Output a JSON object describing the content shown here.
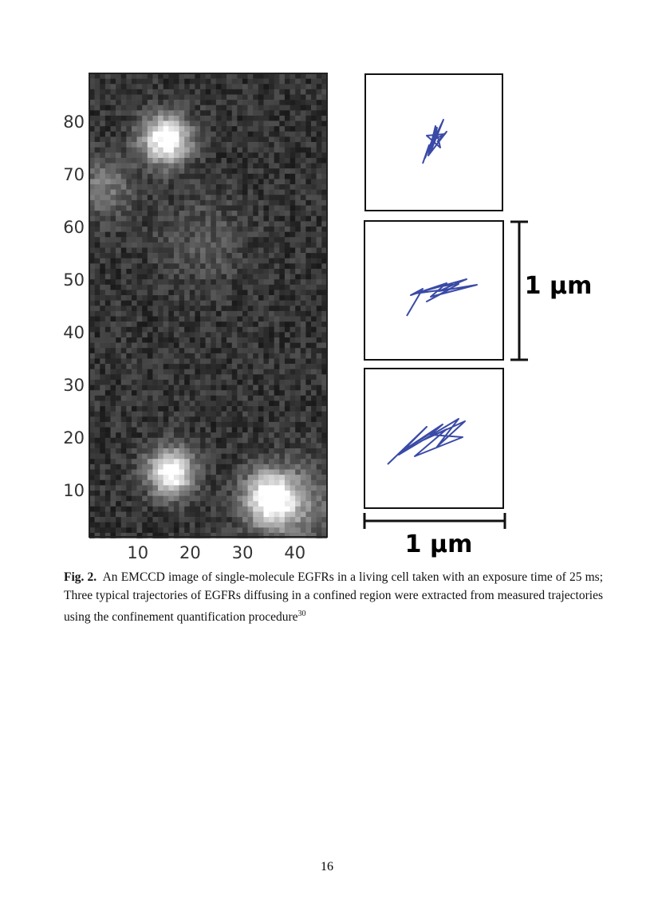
{
  "figure": {
    "image_yticks": [
      10,
      20,
      30,
      40,
      50,
      60,
      70,
      80
    ],
    "image_xticks": [
      10,
      20,
      30,
      40
    ],
    "scale_bar_vertical": "1 µm",
    "scale_bar_horizontal": "1 µm"
  },
  "caption": {
    "label": "Fig. 2.",
    "text": "An EMCCD image of single-molecule EGFRs in a living cell taken with an exposure time of 25 ms; Three typical trajectories of EGFRs diffusing in a confined region were extracted from measured trajectories using the confinement quantification procedure",
    "ref": "30"
  },
  "page_number": "16"
}
